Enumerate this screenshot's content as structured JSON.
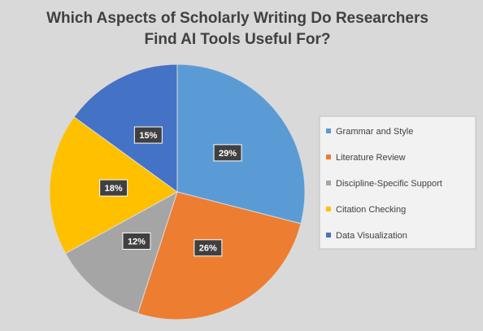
{
  "chart_data": {
    "type": "pie",
    "title": "Which Aspects of Scholarly Writing Do Researchers\nFind AI Tools Useful For?",
    "categories": [
      "Grammar and Style",
      "Literature Review",
      "Discipline-Specific Support",
      "Citation Checking",
      "Data Visualization"
    ],
    "values": [
      29,
      26,
      12,
      18,
      15
    ],
    "value_labels": [
      "29%",
      "26%",
      "12%",
      "18%",
      "15%"
    ],
    "colors": [
      "#5b9bd5",
      "#ed7d31",
      "#a5a5a5",
      "#ffc000",
      "#4472c4"
    ],
    "legend": "right"
  }
}
